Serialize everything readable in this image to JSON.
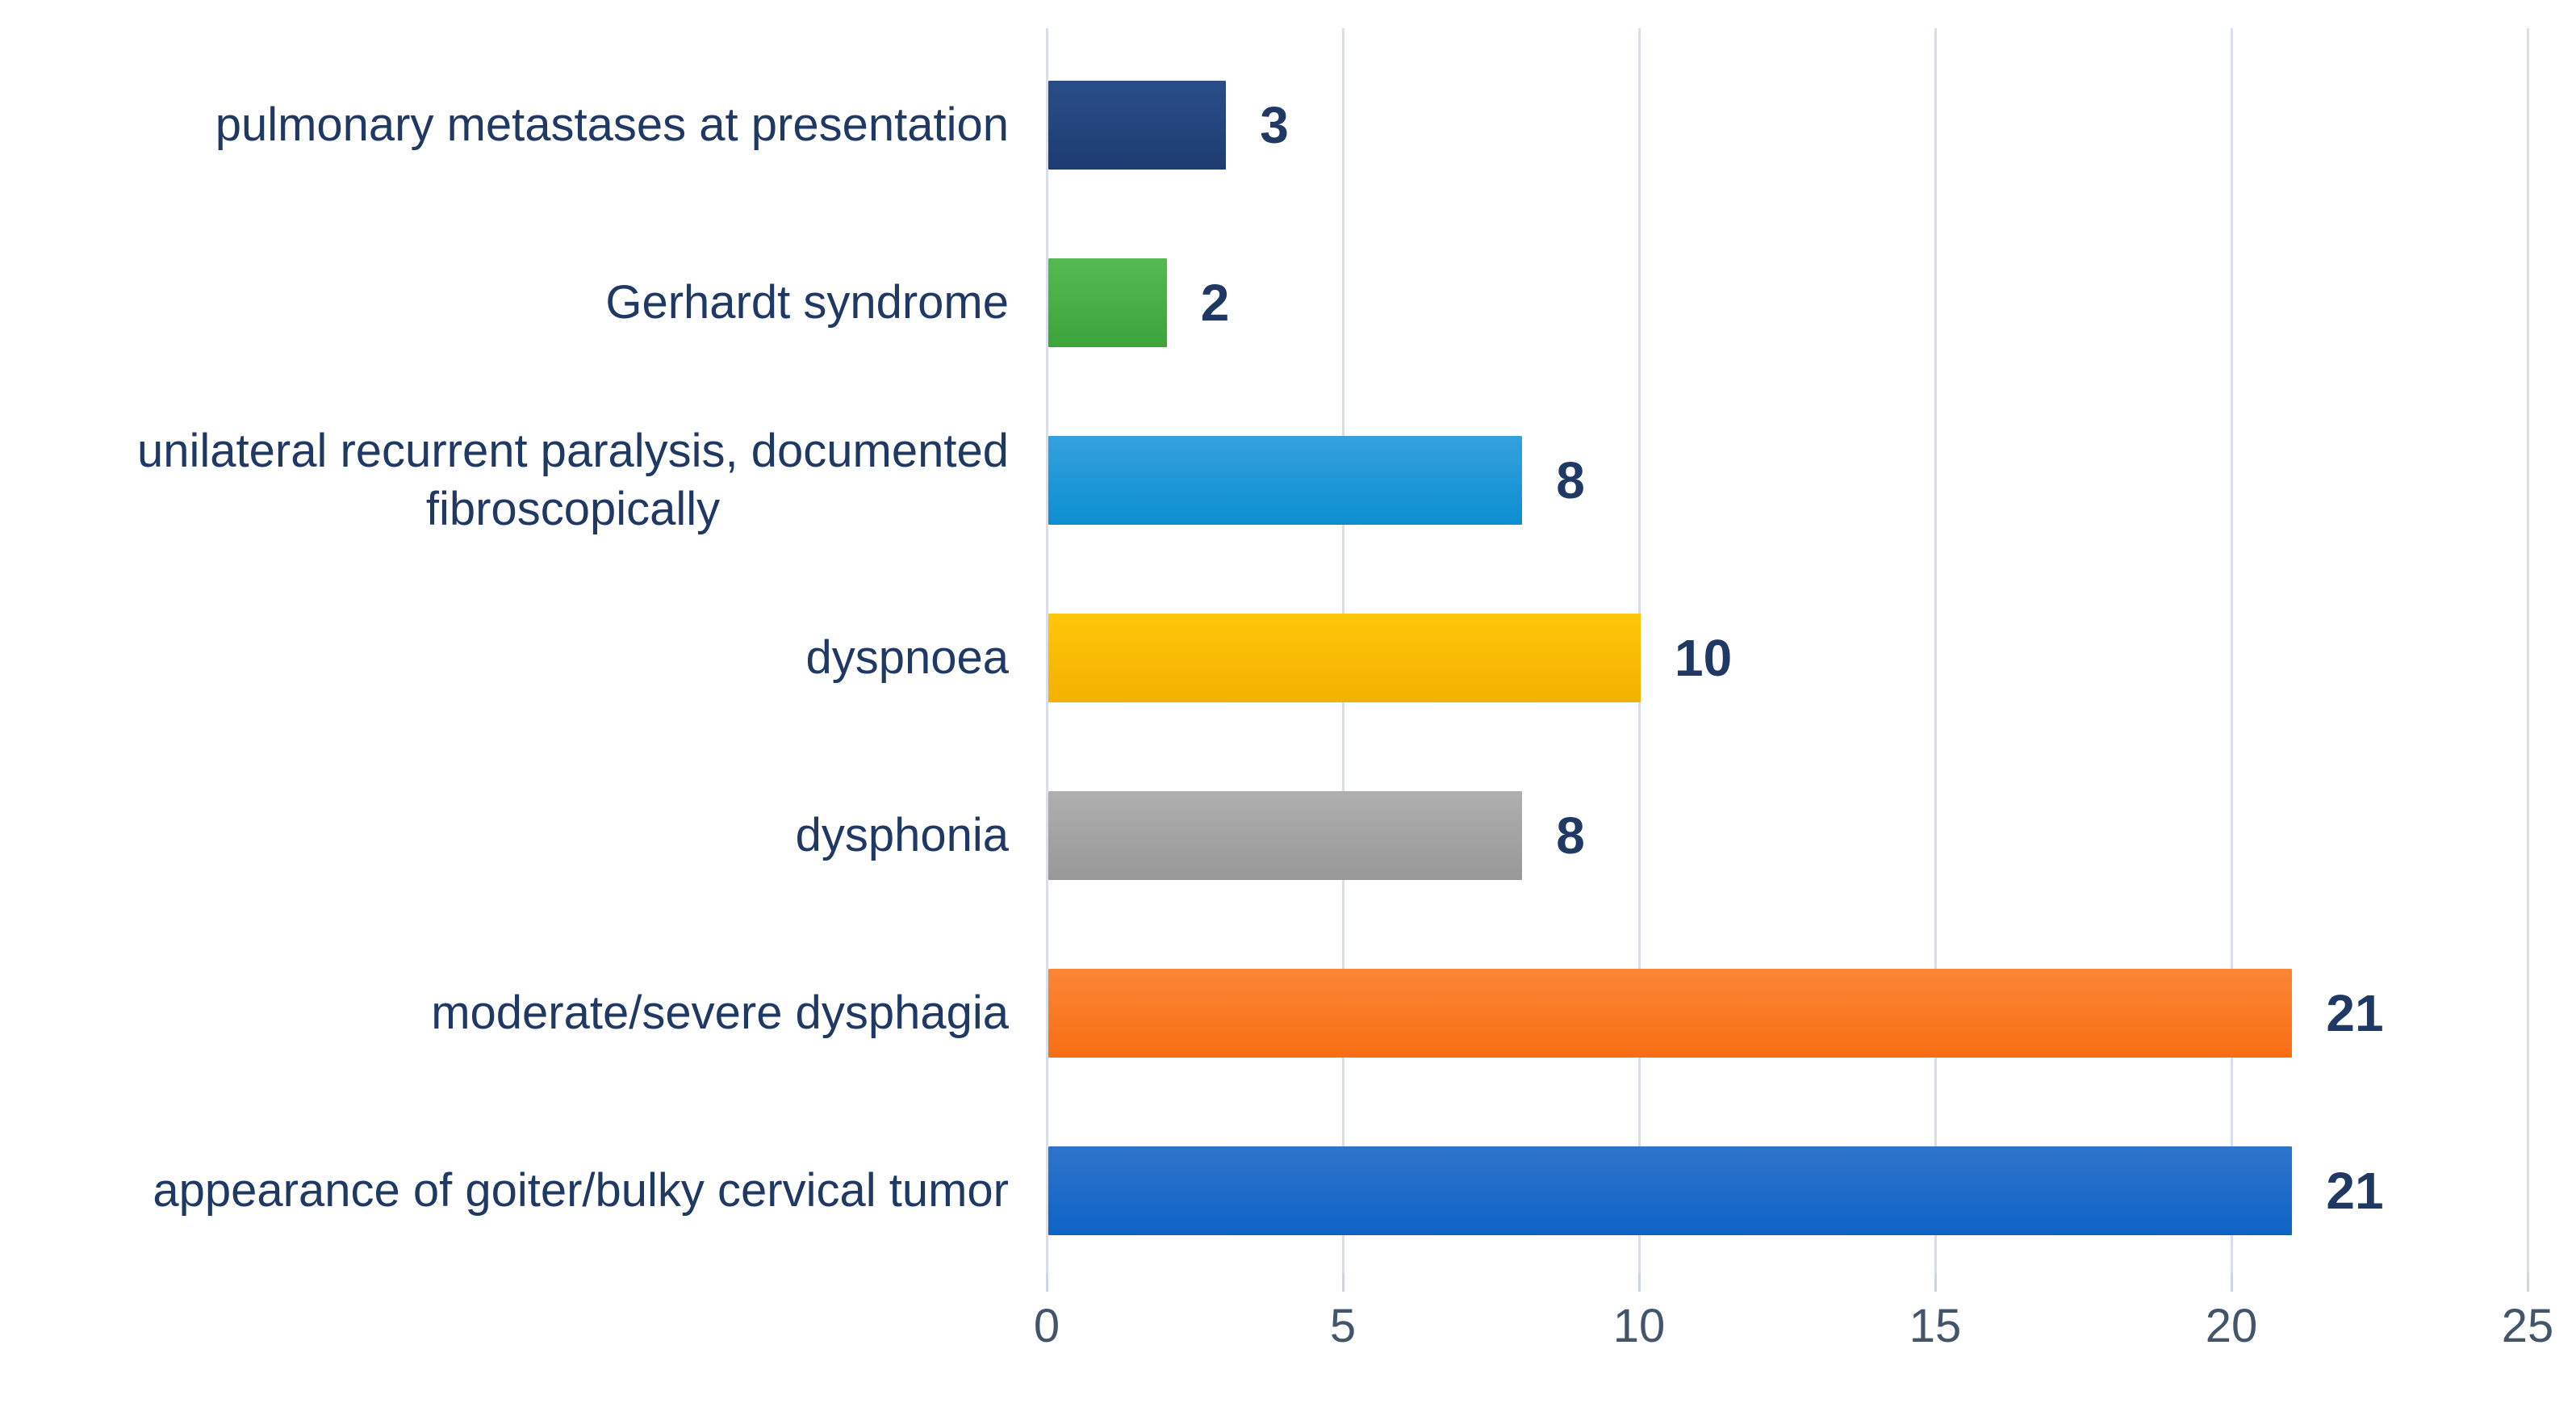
{
  "chart_data": {
    "type": "bar",
    "orientation": "horizontal",
    "title": "",
    "xlabel": "",
    "ylabel": "",
    "xlim": [
      0,
      25
    ],
    "x_ticks": [
      0,
      5,
      10,
      15,
      20,
      25
    ],
    "grid": "vertical-gridlines-on",
    "legend": "none",
    "value_labels": "shown-right-of-bars",
    "categories_top_to_bottom": [
      "pulmonary metastases at presentation",
      "Gerhardt syndrome",
      "unilateral recurrent paralysis, documented\nfibroscopically",
      "dyspnoea",
      "dysphonia",
      "moderate/severe dysphagia",
      "appearance of goiter/bulky cervical tumor"
    ],
    "values_top_to_bottom": [
      3,
      2,
      8,
      10,
      8,
      21,
      21
    ],
    "bars": [
      {
        "label": "pulmonary metastases at presentation",
        "value": 3,
        "color_name": "dark-navy",
        "color_top": "#2b4d87",
        "color_bottom": "#1c3c72"
      },
      {
        "label": "Gerhardt syndrome",
        "value": 2,
        "color_name": "green",
        "color_top": "#55b951",
        "color_bottom": "#3ca43a"
      },
      {
        "label": "unilateral recurrent paralysis, documented\nfibroscopically",
        "value": 8,
        "color_name": "light-blue",
        "color_top": "#35a1dd",
        "color_bottom": "#0c8ed0"
      },
      {
        "label": "dyspnoea",
        "value": 10,
        "color_name": "gold",
        "color_top": "#ffc60a",
        "color_bottom": "#f2b100"
      },
      {
        "label": "dysphonia",
        "value": 8,
        "color_name": "gray",
        "color_top": "#afafaf",
        "color_bottom": "#989898"
      },
      {
        "label": "moderate/severe dysphagia",
        "value": 21,
        "color_name": "orange",
        "color_top": "#fb8637",
        "color_bottom": "#f76e12"
      },
      {
        "label": "appearance of goiter/bulky cervical tumor",
        "value": 21,
        "color_name": "blue",
        "color_top": "#2f74cb",
        "color_bottom": "#0d63c5"
      }
    ]
  },
  "colors": {
    "background": "#ffffff",
    "category_label_text": "#1f3864",
    "value_label_text": "#1f3864",
    "tick_label_text": "#44546a",
    "gridline": "#d9dfe9"
  }
}
